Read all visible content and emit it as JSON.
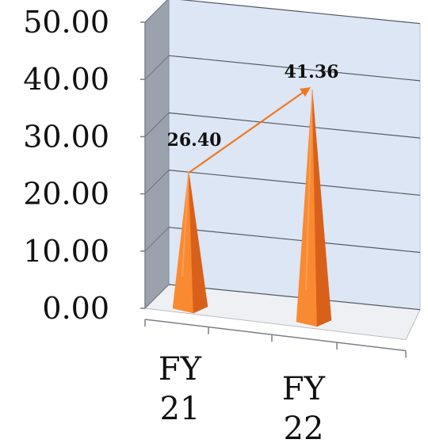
{
  "chart_data": {
    "type": "bar",
    "style": "3d-pyramid",
    "categories": [
      [
        "FY",
        "21"
      ],
      [
        "FY",
        "22"
      ]
    ],
    "values": [
      26.4,
      41.36
    ],
    "data_labels": [
      "26.40",
      "41.36"
    ],
    "y_ticks": [
      "0.00",
      "10.00",
      "20.00",
      "30.00",
      "40.00",
      "50.00"
    ],
    "ylim": [
      0,
      50
    ],
    "grid": true,
    "legend": "none",
    "annotation": "arrow from FY 21 peak to FY 22 peak",
    "colors": {
      "bar": "#f98a32",
      "bar_shadow": "#d9601a",
      "bar_highlight": "#ffb070",
      "arrow": "#f07820",
      "plot_wall": "#dde6f4",
      "side_wall": "#9aa3ad",
      "floor": "#eef0f3",
      "gridline": "#555b63"
    }
  }
}
